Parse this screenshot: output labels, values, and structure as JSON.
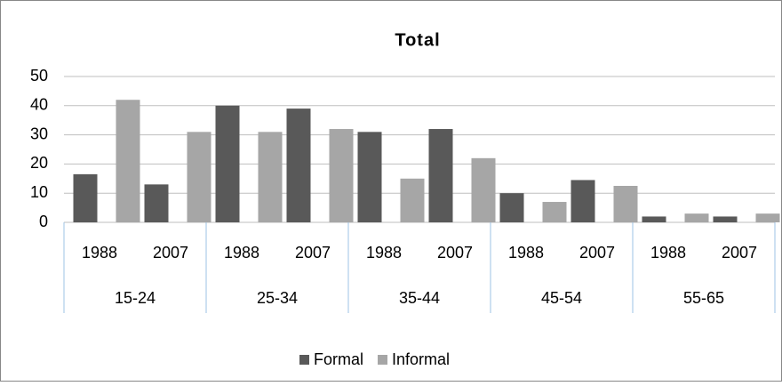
{
  "chart_data": {
    "type": "bar",
    "title": "Total",
    "categories": [
      "1988",
      "2007",
      "1988",
      "2007",
      "1988",
      "2007",
      "1988",
      "2007",
      "1988",
      "2007"
    ],
    "category_groups": [
      "15-24",
      "25-34",
      "35-44",
      "45-54",
      "55-65"
    ],
    "series": [
      {
        "name": "Formal",
        "color": "#595959",
        "values": [
          16.5,
          13,
          40,
          39,
          31,
          32,
          10,
          14.5,
          2,
          2
        ]
      },
      {
        "name": "Informal",
        "color": "#a6a6a6",
        "values": [
          42,
          31,
          31,
          32,
          15,
          22,
          7,
          12.5,
          3,
          3
        ]
      }
    ],
    "ylim": [
      0,
      50
    ],
    "yticks": [
      0,
      10,
      20,
      30,
      40,
      50
    ],
    "grid": true,
    "legend": "bottom"
  }
}
